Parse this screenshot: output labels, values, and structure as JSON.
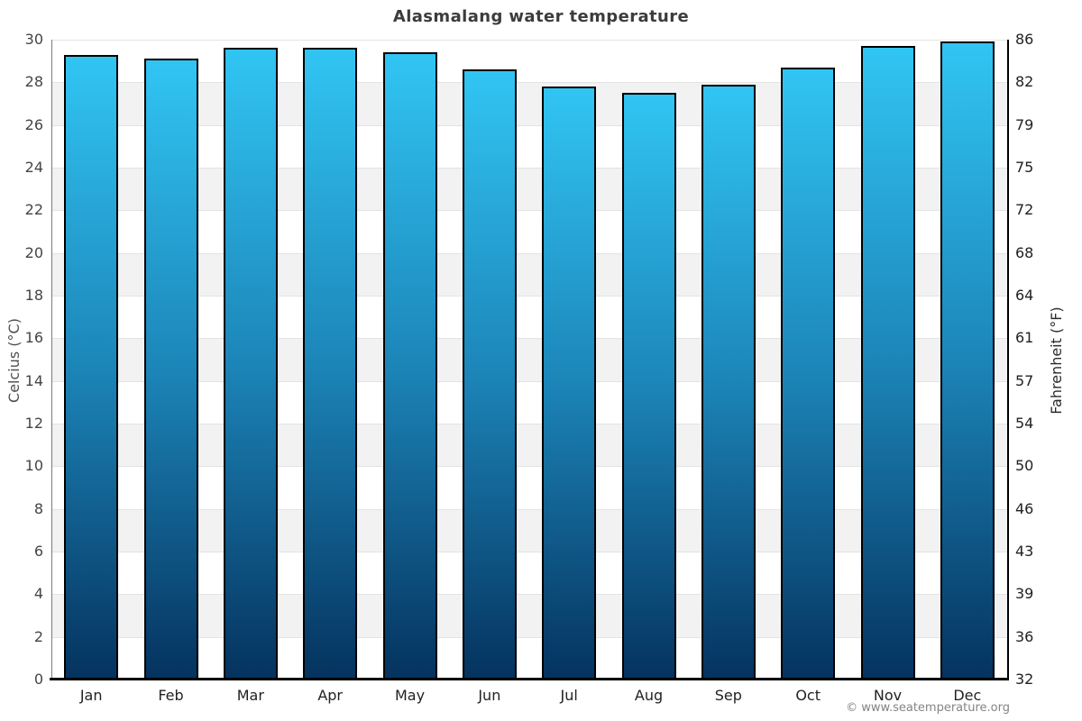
{
  "header": {
    "title": "Alasmalang water temperature"
  },
  "footer": {
    "credit": "© www.seatemperature.org"
  },
  "chart_data": {
    "type": "bar",
    "title": "Alasmalang water temperature",
    "categories": [
      "Jan",
      "Feb",
      "Mar",
      "Apr",
      "May",
      "Jun",
      "Jul",
      "Aug",
      "Sep",
      "Oct",
      "Nov",
      "Dec"
    ],
    "series": [
      {
        "name": "Water temperature (°C)",
        "values": [
          29.3,
          29.1,
          29.6,
          29.6,
          29.4,
          28.6,
          27.8,
          27.5,
          27.9,
          28.7,
          29.7,
          29.9
        ]
      }
    ],
    "ylabel_left": "Celcius (°C)",
    "ylabel_right": "Fahrenheit (°F)",
    "ylim": [
      0,
      30
    ],
    "yticks_celsius": [
      30,
      28,
      26,
      24,
      22,
      20,
      18,
      16,
      14,
      12,
      10,
      8,
      6,
      4,
      2,
      0
    ],
    "yticks_fahrenheit": [
      "86",
      "82",
      "79",
      "75",
      "72",
      "68",
      "64",
      "61",
      "57",
      "54",
      "50",
      "46",
      "43",
      "39",
      "36",
      "32"
    ],
    "grid": "alternating 2°C horizontal bands, no legend",
    "legend_position": "none",
    "colors": {
      "bar_gradient_top": "#31C5F3",
      "bar_gradient_mid": "#1C85B8",
      "bar_gradient_bottom": "#05335F",
      "bar_border": "#000000",
      "band_gray": "#f2f2f2",
      "band_white": "#ffffff",
      "gridline": "#e3e3e3",
      "axis_black": "#000000",
      "axis_left_gray": "#7a7a7a",
      "title_text": "#3c3c3c",
      "tick_text_left": "#454545",
      "tick_text_right": "#222222",
      "footer_text": "#848484"
    }
  }
}
